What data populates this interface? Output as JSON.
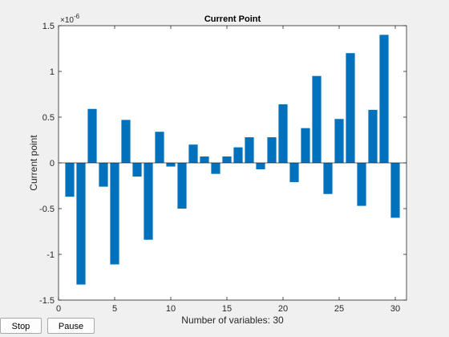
{
  "window": {
    "buttons": {
      "stop": "Stop",
      "pause": "Pause"
    }
  },
  "chart_data": {
    "type": "bar",
    "title": "Current Point",
    "xlabel": "Number of variables: 30",
    "ylabel": "Current point",
    "exponent_label": "×10",
    "exponent_power": "-6",
    "scale": 1e-06,
    "xlim": [
      0,
      31
    ],
    "ylim": [
      -1.5,
      1.5
    ],
    "xticks": [
      0,
      5,
      10,
      15,
      20,
      25,
      30
    ],
    "yticks": [
      -1.5,
      -1,
      -0.5,
      0,
      0.5,
      1,
      1.5
    ],
    "ytick_labels": [
      "-1.5",
      "-1",
      "-0.5",
      "0",
      "0.5",
      "1",
      "1.5"
    ],
    "grid": false,
    "bar_color": "#0072BD",
    "categories": [
      1,
      2,
      3,
      4,
      5,
      6,
      7,
      8,
      9,
      10,
      11,
      12,
      13,
      14,
      15,
      16,
      17,
      18,
      19,
      20,
      21,
      22,
      23,
      24,
      25,
      26,
      27,
      28,
      29,
      30
    ],
    "values": [
      -0.37,
      -1.33,
      0.59,
      -0.26,
      -1.11,
      0.47,
      -0.15,
      -0.84,
      0.34,
      -0.04,
      -0.5,
      0.2,
      0.07,
      -0.12,
      0.07,
      0.17,
      0.28,
      -0.07,
      0.28,
      0.64,
      -0.21,
      0.38,
      0.95,
      -0.34,
      0.48,
      1.2,
      -0.47,
      0.58,
      1.4,
      -0.6
    ]
  }
}
